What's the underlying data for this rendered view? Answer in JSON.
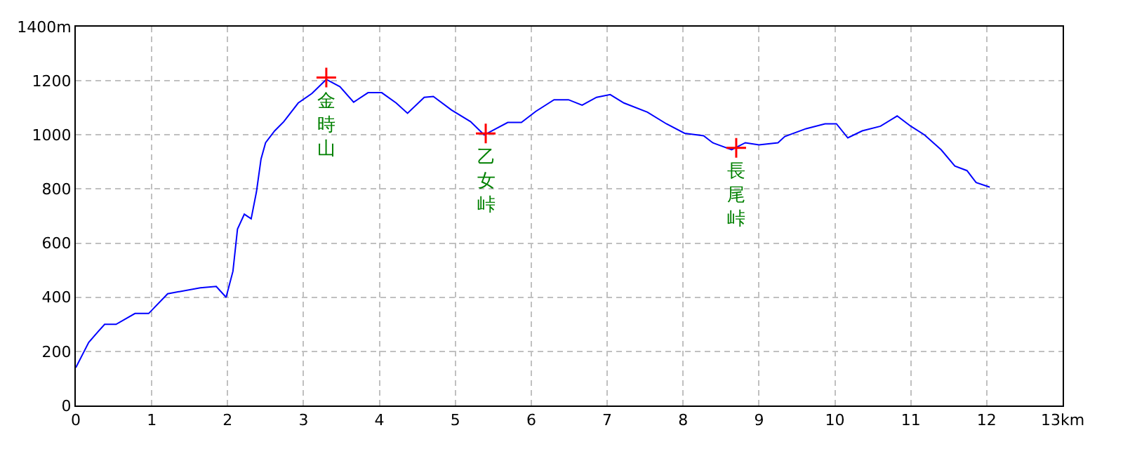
{
  "chart_data": {
    "type": "line",
    "xlim": [
      0,
      13
    ],
    "xticks": [
      0,
      1,
      2,
      3,
      4,
      5,
      6,
      7,
      8,
      9,
      10,
      11,
      12,
      {
        "value": 13,
        "label": "13km"
      }
    ],
    "ylim": [
      0,
      1400
    ],
    "yticks": [
      0,
      200,
      400,
      600,
      800,
      1000,
      1200,
      {
        "value": 1400,
        "label": "1400m"
      }
    ],
    "grid": true,
    "series": [
      {
        "color": "#0000ff",
        "marker": "none",
        "x": [
          0,
          0.17,
          0.29,
          0.38,
          0.53,
          0.78,
          0.96,
          1.21,
          1.64,
          1.85,
          1.98,
          2.07,
          2.13,
          2.22,
          2.31,
          2.38,
          2.44,
          2.5,
          2.62,
          2.74,
          2.93,
          3.11,
          3.3,
          3.48,
          3.66,
          3.85,
          4.03,
          4.22,
          4.37,
          4.59,
          4.71,
          4.95,
          5.2,
          5.38,
          5.69,
          5.87,
          6.06,
          6.3,
          6.49,
          6.67,
          6.86,
          7.04,
          7.22,
          7.53,
          7.78,
          8.02,
          8.27,
          8.39,
          8.64,
          8.82,
          9.0,
          9.25,
          9.34,
          9.62,
          9.87,
          10.02,
          10.17,
          10.36,
          10.6,
          10.82,
          11.0,
          11.18,
          11.4,
          11.58,
          11.74,
          11.86,
          12.04
        ],
        "values": [
          140,
          233,
          272,
          300,
          300,
          340,
          340,
          413,
          435,
          440,
          400,
          496,
          652,
          707,
          690,
          790,
          911,
          971,
          1015,
          1049,
          1118,
          1153,
          1205,
          1178,
          1121,
          1156,
          1156,
          1118,
          1080,
          1139,
          1142,
          1092,
          1049,
          1000,
          1046,
          1046,
          1087,
          1130,
          1130,
          1110,
          1139,
          1149,
          1118,
          1084,
          1041,
          1006,
          997,
          971,
          945,
          971,
          963,
          971,
          994,
          1023,
          1041,
          1041,
          989,
          1015,
          1032,
          1070,
          1032,
          1000,
          945,
          885,
          868,
          824,
          807
        ]
      },
      {
        "type": "scatter",
        "color": "#ff0000",
        "marker": "cross",
        "x": [
          3.3,
          5.4,
          8.7
        ],
        "values": [
          1212,
          1005,
          952
        ]
      }
    ],
    "annotations": [
      {
        "text": "金時山",
        "x": 3.3,
        "y": 1212
      },
      {
        "text": "乙女峠",
        "x": 5.4,
        "y": 1005
      },
      {
        "text": "長尾峠",
        "x": 8.7,
        "y": 952
      }
    ]
  }
}
